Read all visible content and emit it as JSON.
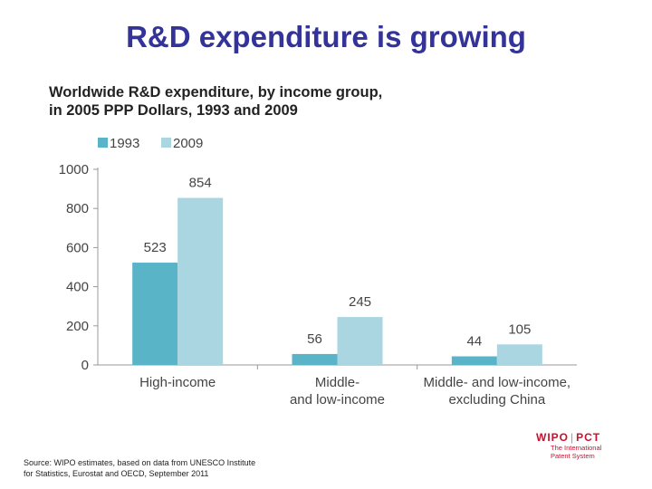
{
  "slide": {
    "title": "R&D expenditure is growing",
    "source_line1": "Source: WIPO estimates, based on data from UNESCO Institute",
    "source_line2": "for Statistics, Eurostat and OECD, September 2011"
  },
  "logo": {
    "name_left": "WIPO",
    "separator": "|",
    "name_right": "PCT",
    "tagline_line1": "The International",
    "tagline_line2": "Patent System",
    "color": "#c8102e"
  },
  "chart_data": {
    "type": "bar",
    "title_line1": "Worldwide R&D expenditure, by income group,",
    "title_line2": "in 2005 PPP Dollars, 1993 and 2009",
    "categories": [
      [
        "High-income"
      ],
      [
        "Middle-",
        "and low-income"
      ],
      [
        "Middle- and low-income,",
        "excluding China"
      ]
    ],
    "series": [
      {
        "name": "1993",
        "values": [
          523,
          56,
          44
        ],
        "color": "#5ab4c8"
      },
      {
        "name": "2009",
        "values": [
          854,
          245,
          105
        ],
        "color": "#aad6e2"
      }
    ],
    "ylim": [
      0,
      1000
    ],
    "yticks": [
      0,
      200,
      400,
      600,
      800,
      1000
    ],
    "grid": false,
    "legend": "top-left"
  }
}
